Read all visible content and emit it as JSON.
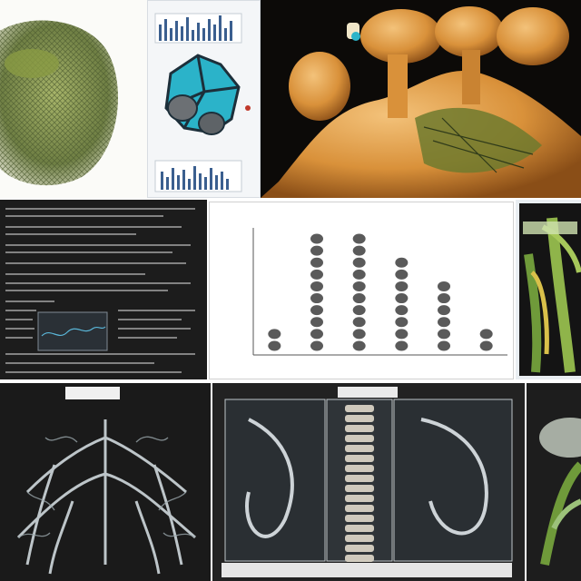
{
  "collage": {
    "tiles": [
      {
        "name": "textured-mesh-blob"
      },
      {
        "name": "blue-cluster-with-bar-strips"
      },
      {
        "name": "orange-organic-sculpture"
      },
      {
        "name": "dark-text-document-with-wave-inset"
      },
      {
        "name": "dot-column-chart"
      },
      {
        "name": "green-plant-panel"
      },
      {
        "name": "xray-branching-structure"
      },
      {
        "name": "xray-skeleton-panels"
      },
      {
        "name": "leafy-sketch-edge"
      }
    ]
  },
  "dot_chart": {
    "chart_data": {
      "type": "scatter",
      "categories": [
        "",
        "",
        "",
        "",
        "",
        ""
      ],
      "values": [
        2,
        10,
        10,
        8,
        6,
        2
      ],
      "ylim": [
        0,
        10
      ]
    }
  },
  "colors": {
    "dark_panel": "#1c1c1c",
    "orange": "#d9913a",
    "teal": "#2bb3c9",
    "xray": "#cfd8dc",
    "dot": "#5a5a5a",
    "green": "#6f9a3a"
  }
}
